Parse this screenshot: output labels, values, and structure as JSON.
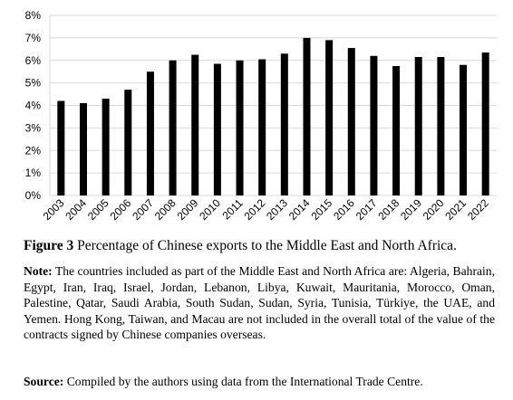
{
  "chart_data": {
    "type": "bar",
    "categories": [
      "2003",
      "2004",
      "2005",
      "2006",
      "2007",
      "2008",
      "2009",
      "2010",
      "2011",
      "2012",
      "2013",
      "2014",
      "2015",
      "2016",
      "2017",
      "2018",
      "2019",
      "2020",
      "2021",
      "2022"
    ],
    "values": [
      4.2,
      4.1,
      4.3,
      4.7,
      5.5,
      6.0,
      6.25,
      5.85,
      6.0,
      6.05,
      6.3,
      7.0,
      6.9,
      6.55,
      6.2,
      5.75,
      6.15,
      6.15,
      5.8,
      6.35
    ],
    "color": "#000000",
    "ylim": [
      0,
      8
    ],
    "yticks": [
      {
        "value": 0,
        "label": "0%"
      },
      {
        "value": 1,
        "label": "1%"
      },
      {
        "value": 2,
        "label": "2%"
      },
      {
        "value": 3,
        "label": "3%"
      },
      {
        "value": 4,
        "label": "4%"
      },
      {
        "value": 5,
        "label": "5%"
      },
      {
        "value": 6,
        "label": "6%"
      },
      {
        "value": 7,
        "label": "7%"
      },
      {
        "value": 8,
        "label": "8%"
      }
    ],
    "grid": true
  },
  "caption": {
    "label": "Figure 3",
    "text": "Percentage of Chinese exports to the Middle East and North Africa."
  },
  "note": {
    "label": "Note:",
    "text": "The countries included as part of the Middle East and North Africa are: Algeria, Bahrain, Egypt, Iran, Iraq, Israel, Jordan, Lebanon, Libya, Kuwait, Mauritania, Morocco, Oman, Palestine, Qatar, Saudi Arabia, South Sudan, Sudan, Syria, Tunisia, Türkiye, the UAE, and Yemen. Hong Kong, Taiwan, and Macau are not included in the overall total of the value of the contracts signed by Chinese companies overseas."
  },
  "source": {
    "label": "Source:",
    "text": "Compiled by the authors using data from the International Trade Centre."
  }
}
